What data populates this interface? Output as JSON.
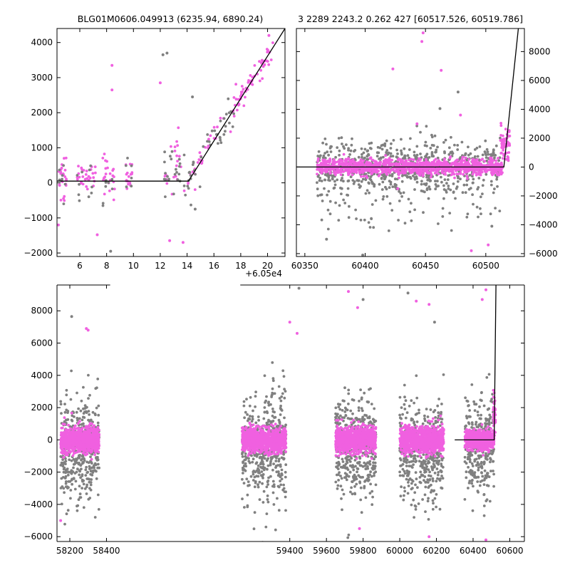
{
  "colors": {
    "series_a": "#808080",
    "series_b": "#f060e0",
    "model": "#000000",
    "frame": "#000000"
  },
  "chart_data": [
    {
      "id": "zoom-left",
      "type": "scatter",
      "title": "BLG01M0606.049913 (6235.94, 6890.24)",
      "x_offset_label": "+6.05e4",
      "xlim": [
        4.3,
        21.3
      ],
      "ylim": [
        -2100,
        4400
      ],
      "xticks": [
        6,
        8,
        10,
        12,
        14,
        16,
        18,
        20
      ],
      "xtick_labels": [
        "6",
        "8",
        "10",
        "12",
        "14",
        "16",
        "18",
        "20"
      ],
      "yticks": [
        -2000,
        -1000,
        0,
        1000,
        2000,
        3000,
        4000
      ],
      "ytick_labels": [
        "−2000",
        "−1000",
        "0",
        "1000",
        "2000",
        "3000",
        "4000"
      ],
      "yaxis_side": "left",
      "model_line": {
        "x": [
          4.3,
          14.1,
          21.3
        ],
        "y": [
          50,
          50,
          4400
        ]
      },
      "series": [
        {
          "color_key": "series_b",
          "clusters": [
            {
              "x_range": [
                4.4,
                5.0
              ],
              "n": 24,
              "y_center": 100,
              "y_spread": 650
            },
            {
              "x_range": [
                5.8,
                7.2
              ],
              "n": 30,
              "y_center": 150,
              "y_spread": 500
            },
            {
              "x_range": [
                7.7,
                8.6
              ],
              "n": 22,
              "y_center": 250,
              "y_spread": 650
            },
            {
              "x_range": [
                9.4,
                9.9
              ],
              "n": 16,
              "y_center": 250,
              "y_spread": 550
            },
            {
              "x_range": [
                12.3,
                13.6
              ],
              "n": 20,
              "y_center": 600,
              "y_spread": 900
            },
            {
              "x_range": [
                13.6,
                17.8
              ],
              "n": 36,
              "y_center": "model",
              "y_spread": 450
            },
            {
              "x_range": [
                17.8,
                20.4
              ],
              "n": 50,
              "y_center": "model",
              "y_spread": 280
            }
          ],
          "outliers": [
            {
              "x": 8.4,
              "y": 3350
            },
            {
              "x": 8.4,
              "y": 2650
            },
            {
              "x": 12.0,
              "y": 2850
            },
            {
              "x": 4.4,
              "y": -1200
            },
            {
              "x": 7.3,
              "y": -1480
            },
            {
              "x": 13.7,
              "y": -1700
            },
            {
              "x": 12.7,
              "y": -1650
            },
            {
              "x": 20.1,
              "y": 4200
            }
          ]
        },
        {
          "color_key": "series_a",
          "clusters": [
            {
              "x_range": [
                4.4,
                5.0
              ],
              "n": 8,
              "y_center": 0,
              "y_spread": 500
            },
            {
              "x_range": [
                5.8,
                7.2
              ],
              "n": 10,
              "y_center": 0,
              "y_spread": 700
            },
            {
              "x_range": [
                7.7,
                8.6
              ],
              "n": 8,
              "y_center": 0,
              "y_spread": 700
            },
            {
              "x_range": [
                9.4,
                9.9
              ],
              "n": 6,
              "y_center": 100,
              "y_spread": 600
            },
            {
              "x_range": [
                12.3,
                14.1
              ],
              "n": 26,
              "y_center": 300,
              "y_spread": 800
            },
            {
              "x_range": [
                14.1,
                17.5
              ],
              "n": 40,
              "y_center": "model",
              "y_spread": 700
            }
          ],
          "outliers": [
            {
              "x": 12.5,
              "y": 3700
            },
            {
              "x": 12.2,
              "y": 3650
            },
            {
              "x": 14.4,
              "y": 2450
            },
            {
              "x": 8.3,
              "y": -1950
            },
            {
              "x": 14.6,
              "y": -750
            }
          ]
        }
      ]
    },
    {
      "id": "zoom-right",
      "type": "scatter",
      "title": "3 2289 2243.2 0.262 427 [60517.526, 60519.786]",
      "xlim": [
        60343,
        60532
      ],
      "ylim": [
        -6200,
        9600
      ],
      "xticks": [
        60350,
        60400,
        60450,
        60500
      ],
      "xtick_labels": [
        "60350",
        "60400",
        "60450",
        "60500"
      ],
      "yticks": [
        -6000,
        -4000,
        -2000,
        0,
        2000,
        4000,
        6000,
        8000
      ],
      "ytick_labels": [
        "−6000",
        "−4000",
        "−2000",
        "0",
        "2000",
        "4000",
        "6000",
        "8000"
      ],
      "yaxis_side": "right",
      "model_line": {
        "x": [
          60343,
          60515,
          60527
        ],
        "y": [
          0,
          0,
          9600
        ]
      },
      "series": [
        {
          "color_key": "series_a",
          "clusters": [
            {
              "x_range": [
                60360,
                60512
              ],
              "n": 700,
              "y_center": 0,
              "y_spread": 1800
            },
            {
              "x_range": [
                60360,
                60512
              ],
              "n": 80,
              "y_center": -2600,
              "y_spread": 1800
            }
          ],
          "outliers": [
            {
              "x": 60368,
              "y": -5000
            },
            {
              "x": 60398,
              "y": -6100
            },
            {
              "x": 60477,
              "y": 5200
            },
            {
              "x": 60462,
              "y": 4050
            },
            {
              "x": 60505,
              "y": -4100
            }
          ]
        },
        {
          "color_key": "series_b",
          "clusters": [
            {
              "x_range": [
                60360,
                60514
              ],
              "n": 1100,
              "y_center": 0,
              "y_spread": 550
            },
            {
              "x_range": [
                60512,
                60520
              ],
              "n": 60,
              "y_center": 1500,
              "y_spread": 1400
            }
          ],
          "outliers": [
            {
              "x": 60447,
              "y": 8700
            },
            {
              "x": 60448,
              "y": 9300
            },
            {
              "x": 60423,
              "y": 6800
            },
            {
              "x": 60463,
              "y": 6700
            },
            {
              "x": 60479,
              "y": 3600
            },
            {
              "x": 60488,
              "y": -5800
            },
            {
              "x": 60502,
              "y": -5400
            },
            {
              "x": 60427,
              "y": -1500
            },
            {
              "x": 60443,
              "y": 3000
            }
          ]
        }
      ]
    },
    {
      "id": "full",
      "type": "scatter",
      "title": "",
      "xlim": [
        58130,
        60680
      ],
      "ylim": [
        -6300,
        9600
      ],
      "xticks": [
        58200,
        58400,
        59400,
        59600,
        59800,
        60000,
        60200,
        60400,
        60600
      ],
      "xtick_labels": [
        "58200",
        "58400",
        "59400",
        "59600",
        "59800",
        "60000",
        "60200",
        "60400",
        "60600"
      ],
      "yticks": [
        -6000,
        -4000,
        -2000,
        0,
        2000,
        4000,
        6000,
        8000
      ],
      "ytick_labels": [
        "−6000",
        "−4000",
        "−2000",
        "0",
        "2000",
        "4000",
        "6000",
        "8000"
      ],
      "yaxis_side": "left",
      "axis_break": {
        "from": 58420,
        "to": 59130
      },
      "model_line": {
        "x": [
          60300,
          60515,
          60525
        ],
        "y": [
          0,
          0,
          9600
        ]
      },
      "series": [
        {
          "color_key": "series_a",
          "clusters": [
            {
              "x_range": [
                58150,
                58360
              ],
              "n": 420,
              "y_center": -500,
              "y_spread": 3200
            },
            {
              "x_range": [
                59140,
                59380
              ],
              "n": 460,
              "y_center": -600,
              "y_spread": 3400
            },
            {
              "x_range": [
                59650,
                59870
              ],
              "n": 440,
              "y_center": -500,
              "y_spread": 3200
            },
            {
              "x_range": [
                60000,
                60240
              ],
              "n": 440,
              "y_center": -600,
              "y_spread": 3200
            },
            {
              "x_range": [
                60355,
                60515
              ],
              "n": 300,
              "y_center": -500,
              "y_spread": 3000
            }
          ],
          "outliers": [
            {
              "x": 58210,
              "y": 7650
            },
            {
              "x": 59450,
              "y": 9400
            },
            {
              "x": 59800,
              "y": 8700
            },
            {
              "x": 60045,
              "y": 9100
            },
            {
              "x": 60190,
              "y": 7300
            }
          ]
        },
        {
          "color_key": "series_b",
          "clusters": [
            {
              "x_range": [
                58150,
                58360
              ],
              "n": 900,
              "y_center": 0,
              "y_spread": 750
            },
            {
              "x_range": [
                59140,
                59380
              ],
              "n": 950,
              "y_center": 0,
              "y_spread": 750
            },
            {
              "x_range": [
                59650,
                59870
              ],
              "n": 950,
              "y_center": 0,
              "y_spread": 800
            },
            {
              "x_range": [
                60000,
                60240
              ],
              "n": 950,
              "y_center": 0,
              "y_spread": 800
            },
            {
              "x_range": [
                60355,
                60515
              ],
              "n": 600,
              "y_center": 0,
              "y_spread": 600
            },
            {
              "x_range": [
                60510,
                60522
              ],
              "n": 40,
              "y_center": 1500,
              "y_spread": 1400
            }
          ],
          "outliers": [
            {
              "x": 58290,
              "y": 6900
            },
            {
              "x": 58300,
              "y": 6800
            },
            {
              "x": 59400,
              "y": 7300
            },
            {
              "x": 59440,
              "y": 6600
            },
            {
              "x": 59720,
              "y": 9200
            },
            {
              "x": 59770,
              "y": 8200
            },
            {
              "x": 60090,
              "y": 8600
            },
            {
              "x": 60160,
              "y": 8400
            },
            {
              "x": 60470,
              "y": 9300
            },
            {
              "x": 60450,
              "y": 8700
            },
            {
              "x": 60470,
              "y": -6200
            },
            {
              "x": 59780,
              "y": -5500
            },
            {
              "x": 58150,
              "y": -5000
            },
            {
              "x": 60160,
              "y": -6000
            }
          ]
        }
      ]
    }
  ]
}
